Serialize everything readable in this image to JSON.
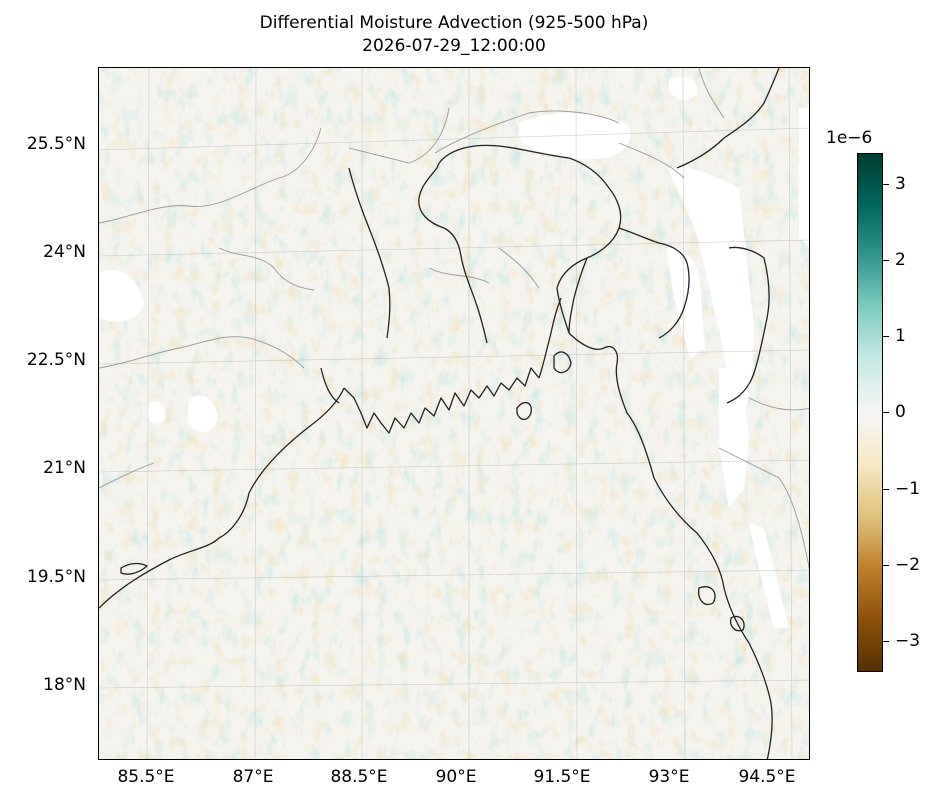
{
  "title": "Differential Moisture Advection (925-500 hPa)",
  "subtitle": "2026-07-29_12:00:00",
  "map": {
    "region": "Bay of Bengal and Bangladesh",
    "lat_labels": [
      "25.5°N",
      "24°N",
      "22.5°N",
      "21°N",
      "19.5°N",
      "18°N"
    ],
    "lat_values": [
      25.5,
      24,
      22.5,
      21,
      19.5,
      18
    ],
    "lon_labels": [
      "85.5°E",
      "87°E",
      "88.5°E",
      "90°E",
      "91.5°E",
      "93°E",
      "94.5°E"
    ],
    "lon_values": [
      85.5,
      87,
      88.5,
      90,
      91.5,
      93,
      94.5
    ],
    "lon_range": [
      84.85,
      94.85
    ],
    "lat_range": [
      16.9,
      26.6
    ],
    "colormap": "BrBG",
    "coastline_color": "#222222",
    "border_color": "#999999",
    "missing_color": "#ffffff"
  },
  "colorbar": {
    "exponent_label": "1e−6",
    "ticks": [
      "3",
      "2",
      "1",
      "0",
      "−1",
      "−2",
      "−3"
    ],
    "tick_values": [
      3,
      2,
      1,
      0,
      -1,
      -2,
      -3
    ],
    "range": [
      -3.4,
      3.4
    ],
    "colors_top_to_bottom": [
      "#003c30",
      "#01665e",
      "#35978f",
      "#80cdc1",
      "#c7eae5",
      "#f5f5f5",
      "#f6e8c3",
      "#dfc27d",
      "#bf812d",
      "#8c510a",
      "#543005"
    ]
  }
}
